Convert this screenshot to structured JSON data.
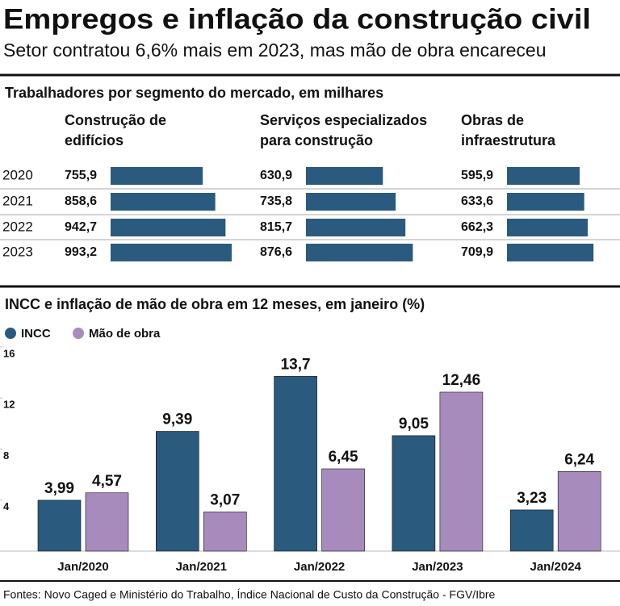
{
  "title": "Empregos e inflação da construção civil",
  "subtitle": "Setor contratou 6,6% mais em 2023, mas mão de obra encareceu",
  "source": "Fontes: Novo Caged e Ministério do Trabalho,  Índice Nacional de Custo da Construção - FGV/Ibre",
  "chart_data": [
    {
      "type": "bar",
      "orientation": "horizontal",
      "title": "Trabalhadores por segmento do mercado, em milhares",
      "categories": [
        "2020",
        "2021",
        "2022",
        "2023"
      ],
      "color": "#2a5a7e",
      "series": [
        {
          "name": "Construção de edifícios",
          "values": [
            755.9,
            858.6,
            942.7,
            993.2
          ],
          "value_labels": [
            "755,9",
            "858,6",
            "942,7",
            "993,2"
          ]
        },
        {
          "name": "Serviços especializados para construção",
          "values": [
            630.9,
            735.8,
            815.7,
            876.6
          ],
          "value_labels": [
            "630,9",
            "735,8",
            "815,7",
            "876,6"
          ]
        },
        {
          "name": "Obras de infraestrutura",
          "values": [
            595.9,
            633.6,
            662.3,
            709.9
          ],
          "value_labels": [
            "595,9",
            "633,6",
            "662,3",
            "709,9"
          ]
        }
      ]
    },
    {
      "type": "bar",
      "orientation": "vertical",
      "title": "INCC e inflação de mão de obra em 12 meses, em janeiro (%)",
      "categories": [
        "Jan/2020",
        "Jan/2021",
        "Jan/2022",
        "Jan/2023",
        "Jan/2024"
      ],
      "series": [
        {
          "name": "INCC",
          "color": "#2a5a7e",
          "values": [
            3.99,
            9.39,
            13.7,
            9.05,
            3.23
          ],
          "value_labels": [
            "3,99",
            "9,39",
            "13,7",
            "9,05",
            "3,23"
          ]
        },
        {
          "name": "Mão de obra",
          "color": "#a88bbd",
          "values": [
            4.57,
            3.07,
            6.45,
            12.46,
            6.24
          ],
          "value_labels": [
            "4,57",
            "3,07",
            "6,45",
            "12,46",
            "6,24"
          ]
        }
      ],
      "ylim": [
        0,
        16
      ],
      "yticks": [
        4,
        8,
        12,
        16
      ]
    }
  ]
}
